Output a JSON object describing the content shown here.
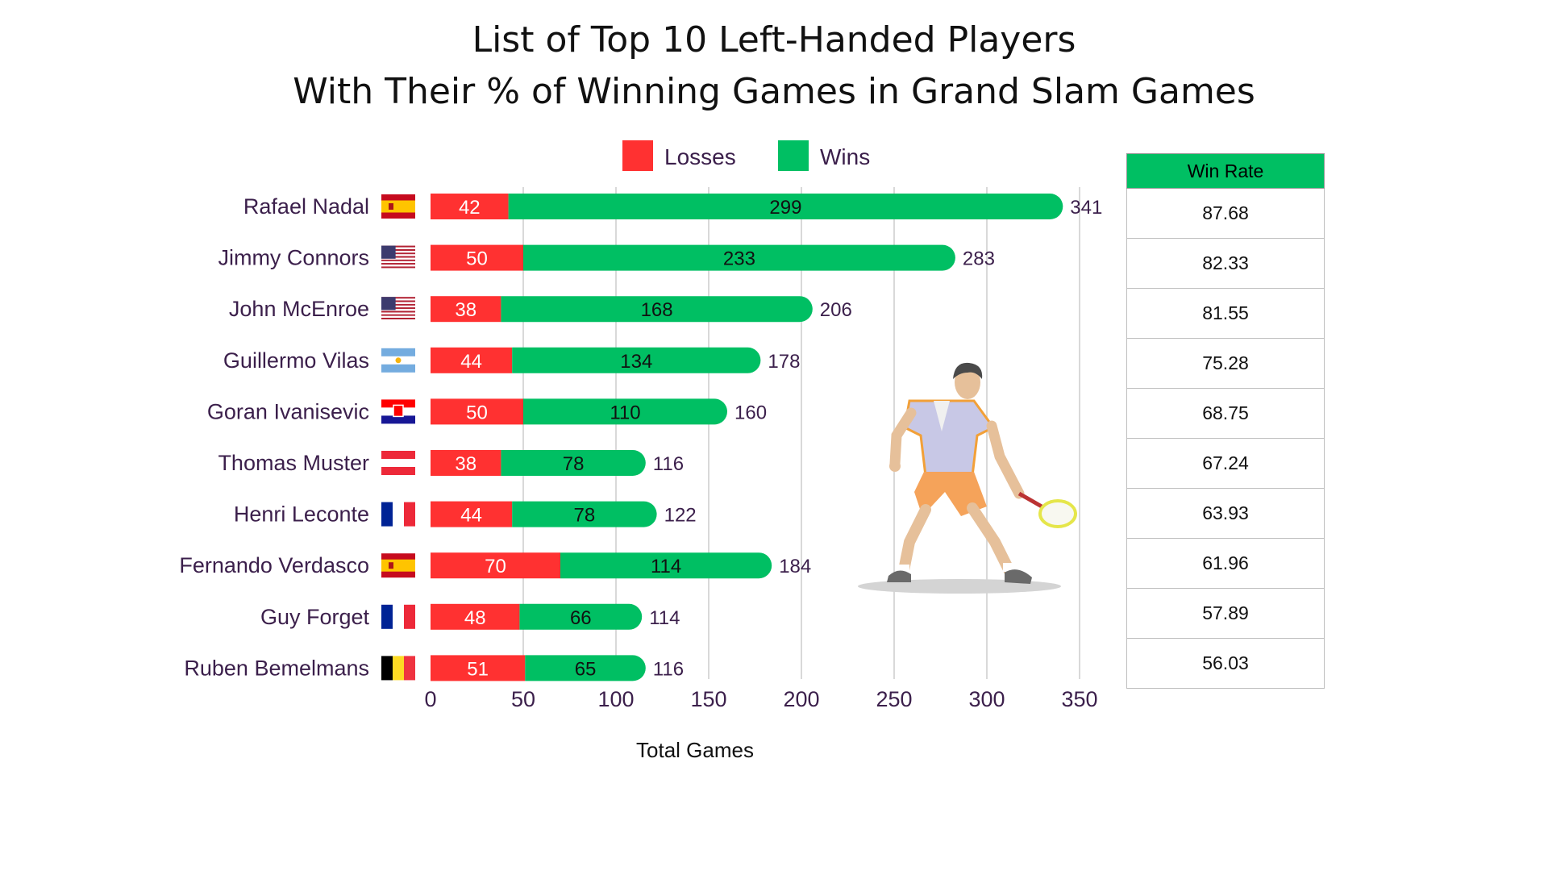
{
  "title_line1": "List of Top 10 Left-Handed Players",
  "title_line2": "With Their % of Winning Games in Grand Slam Games",
  "colors": {
    "losses": "#ff3131",
    "wins": "#00bf63",
    "grid": "#d9d9d9",
    "label_text": "#3b1f4b",
    "tick_text": "#3b1f4b"
  },
  "chart_data": {
    "type": "bar",
    "orientation": "horizontal",
    "stacked": true,
    "categories": [
      "Rafael Nadal",
      "Jimmy Connors",
      "John McEnroe",
      "Guillermo Vilas",
      "Goran Ivanisevic",
      "Thomas Muster",
      "Henri Leconte",
      "Fernando Verdasco",
      "Guy Forget",
      "Ruben Bemelmans"
    ],
    "flags": [
      "spain-flag-icon",
      "usa-flag-icon",
      "usa-flag-icon",
      "argentina-flag-icon",
      "croatia-flag-icon",
      "austria-flag-icon",
      "france-flag-icon",
      "spain-flag-icon",
      "france-flag-icon",
      "belgium-flag-icon"
    ],
    "series": [
      {
        "name": "Losses",
        "values": [
          42,
          50,
          38,
          44,
          50,
          38,
          44,
          70,
          48,
          51
        ]
      },
      {
        "name": "Wins",
        "values": [
          299,
          233,
          168,
          134,
          110,
          78,
          78,
          114,
          66,
          65
        ]
      }
    ],
    "totals": [
      341,
      283,
      206,
      178,
      160,
      116,
      122,
      184,
      114,
      116
    ],
    "xlabel": "Total Games",
    "xlim": [
      0,
      350
    ],
    "xticks": [
      0,
      50,
      100,
      150,
      200,
      250,
      300,
      350
    ],
    "grid": "vertical",
    "legend_position": "top"
  },
  "win_rate_table": {
    "header": "Win Rate",
    "values": [
      "87.68",
      "82.33",
      "81.55",
      "75.28",
      "68.75",
      "67.24",
      "63.93",
      "61.96",
      "57.89",
      "56.03"
    ]
  },
  "illustration": "tennis-player-illustration"
}
